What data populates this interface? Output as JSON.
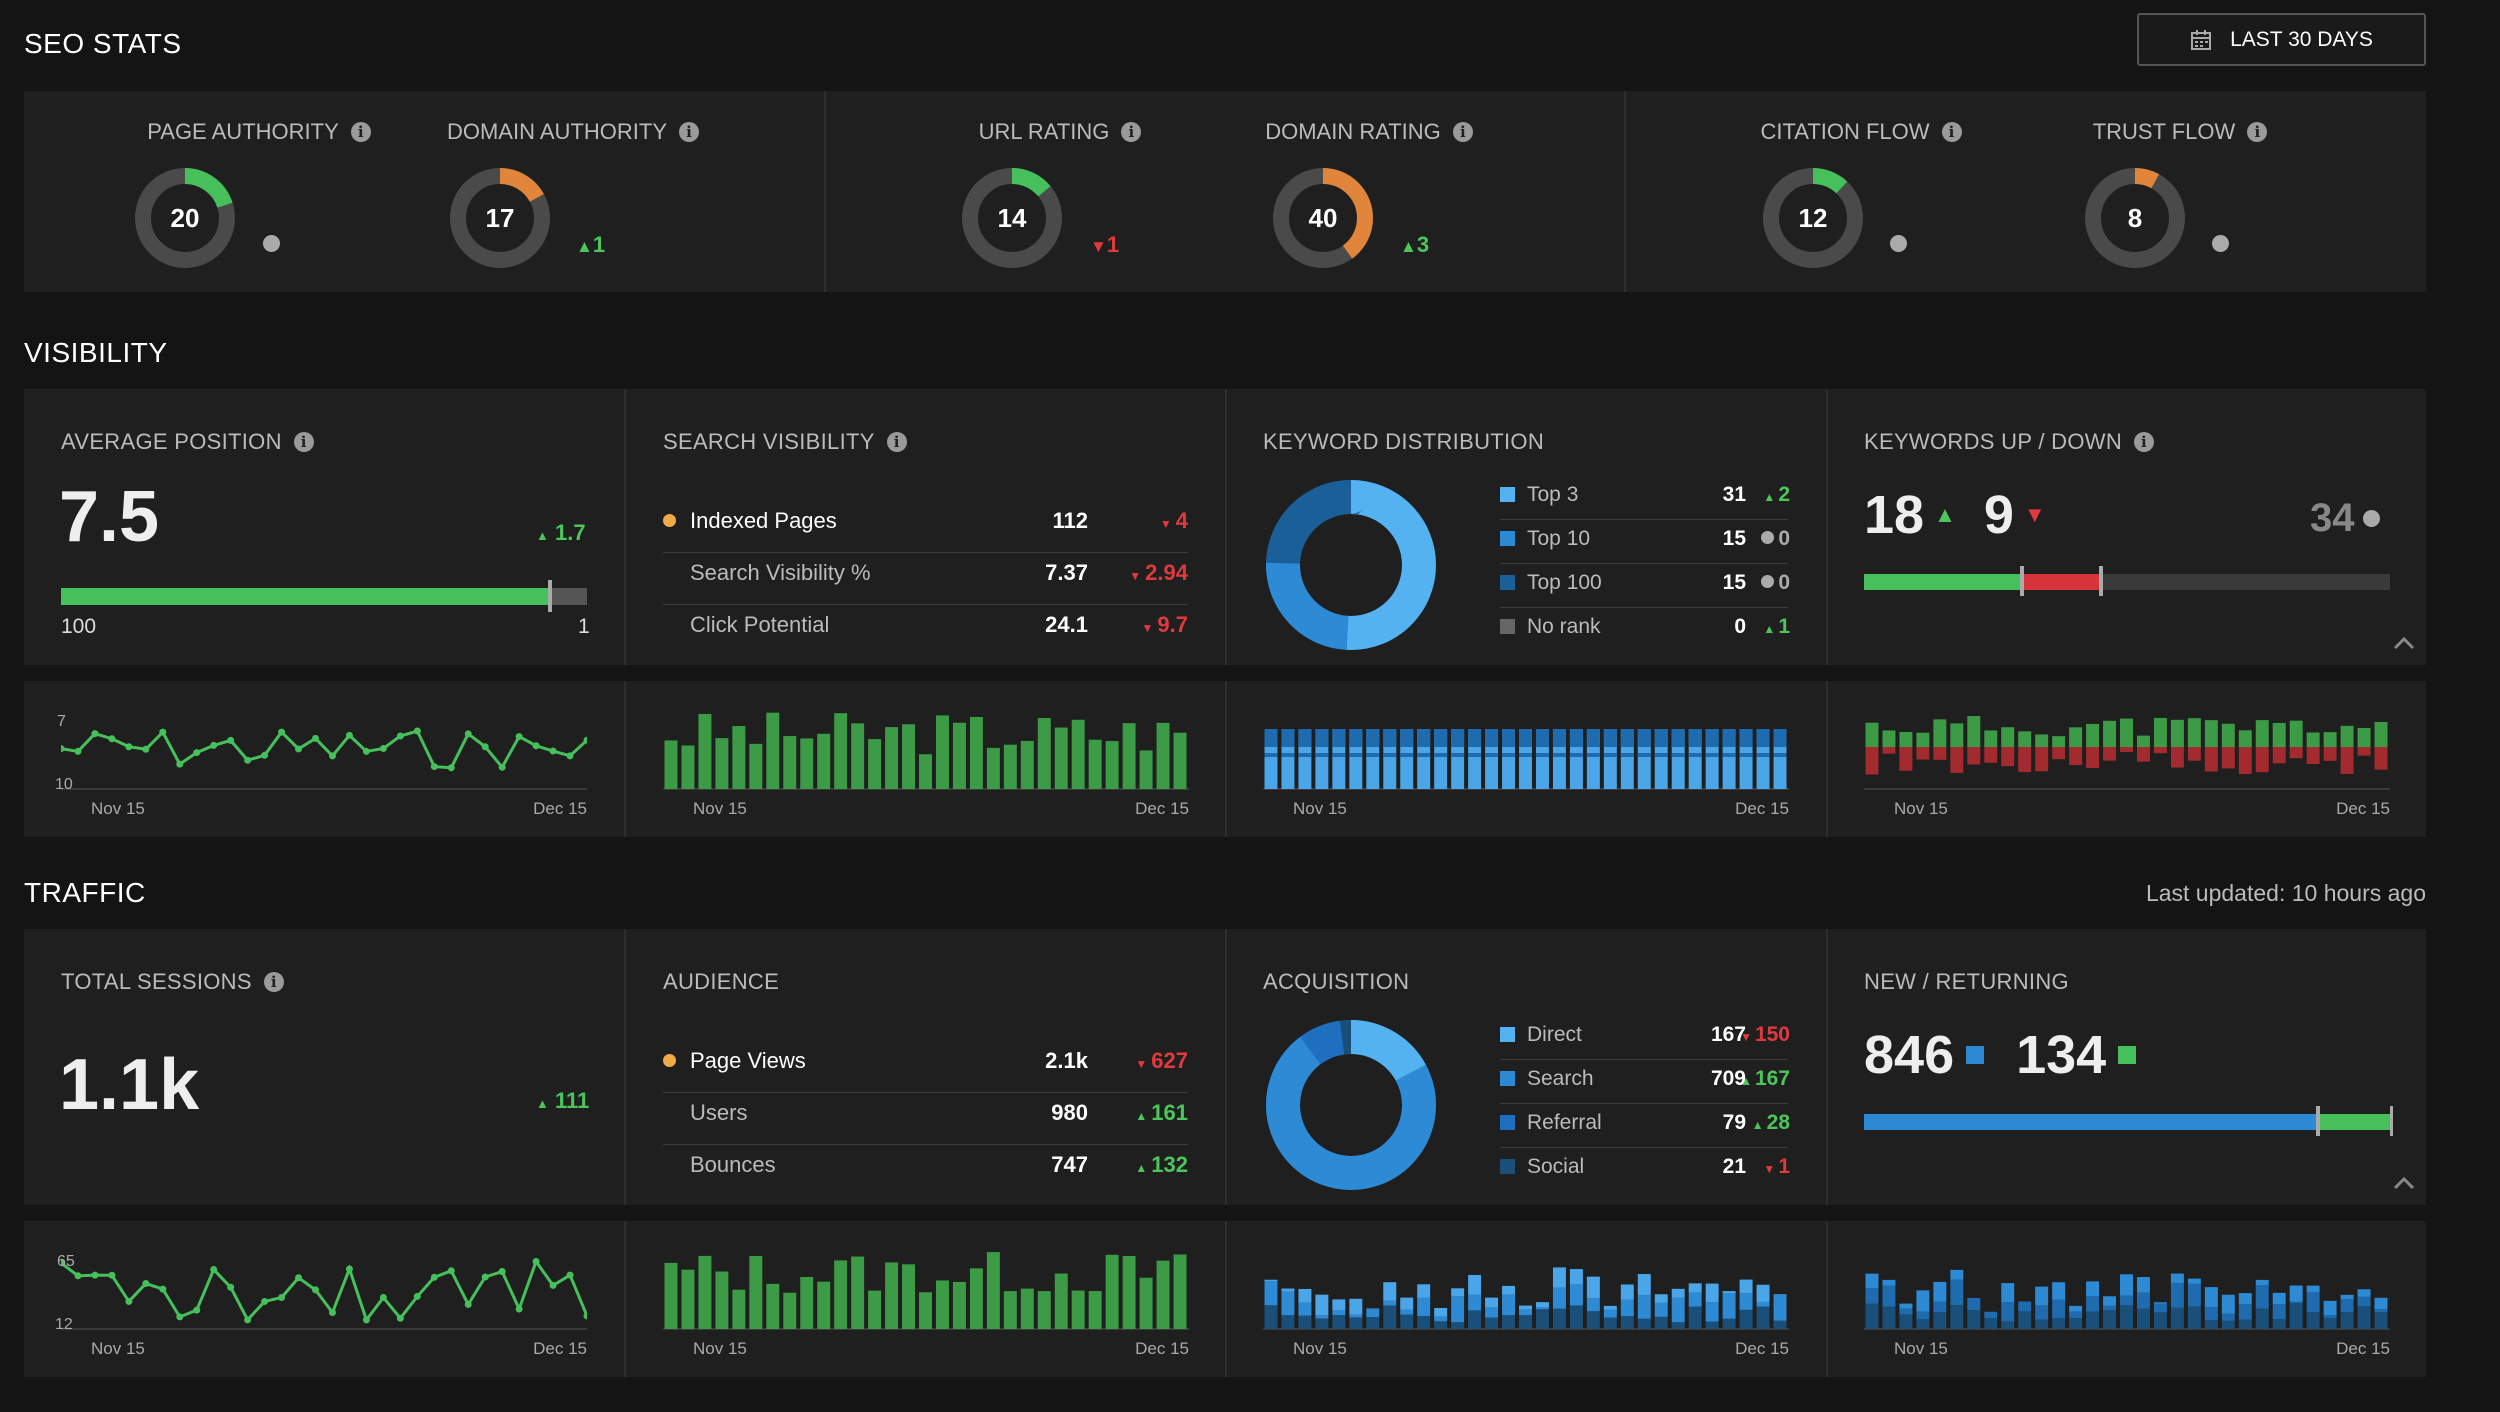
{
  "header": {
    "title": "SEO STATS",
    "range_button": "LAST 30 DAYS"
  },
  "seo": {
    "metrics": [
      {
        "label": "PAGE AUTHORITY",
        "value": "20",
        "change": "",
        "dir": "flat",
        "color": "#46c05a"
      },
      {
        "label": "DOMAIN AUTHORITY",
        "value": "17",
        "change": "1",
        "dir": "up",
        "color": "#e0853a"
      },
      {
        "label": "URL RATING",
        "value": "14",
        "change": "1",
        "dir": "down",
        "color": "#46c05a"
      },
      {
        "label": "DOMAIN RATING",
        "value": "40",
        "change": "3",
        "dir": "up",
        "color": "#e0853a"
      },
      {
        "label": "CITATION FLOW",
        "value": "12",
        "change": "",
        "dir": "flat",
        "color": "#46c05a"
      },
      {
        "label": "TRUST FLOW",
        "value": "8",
        "change": "",
        "dir": "flat",
        "color": "#e0853a"
      }
    ]
  },
  "visibility": {
    "title": "VISIBILITY",
    "avg_position": {
      "label": "AVERAGE POSITION",
      "value": "7.5",
      "change": "1.7",
      "range_min": "100",
      "range_max": "1",
      "progress": 0.93
    },
    "search_visibility": {
      "label": "SEARCH VISIBILITY",
      "rows": [
        {
          "name": "Indexed Pages",
          "value": "112",
          "change": "4",
          "dir": "down"
        },
        {
          "name": "Search Visibility %",
          "value": "7.37",
          "change": "2.94",
          "dir": "down"
        },
        {
          "name": "Click Potential",
          "value": "24.1",
          "change": "9.7",
          "dir": "down"
        }
      ]
    },
    "keyword_distribution": {
      "label": "KEYWORD DISTRIBUTION",
      "rows": [
        {
          "name": "Top 3",
          "value": "31",
          "change": "2",
          "dir": "up",
          "color": "#53b2ef"
        },
        {
          "name": "Top 10",
          "value": "15",
          "change": "0",
          "dir": "flat",
          "color": "#2d8ad4"
        },
        {
          "name": "Top 100",
          "value": "15",
          "change": "0",
          "dir": "flat",
          "color": "#1a5f98"
        },
        {
          "name": "No rank",
          "value": "0",
          "change": "1",
          "dir": "up",
          "color": "#666666"
        }
      ]
    },
    "keywords_updown": {
      "label": "KEYWORDS UP / DOWN",
      "up": "18",
      "down": "9",
      "flat": "34",
      "up_frac": 0.3,
      "down_frac": 0.15
    }
  },
  "traffic": {
    "title": "TRAFFIC",
    "updated": "Last updated: 10 hours ago",
    "total_sessions": {
      "label": "TOTAL SESSIONS",
      "value": "1.1k",
      "change": "111"
    },
    "audience": {
      "label": "AUDIENCE",
      "rows": [
        {
          "name": "Page Views",
          "value": "2.1k",
          "change": "627",
          "dir": "down"
        },
        {
          "name": "Users",
          "value": "980",
          "change": "161",
          "dir": "up"
        },
        {
          "name": "Bounces",
          "value": "747",
          "change": "132",
          "dir": "up"
        }
      ]
    },
    "acquisition": {
      "label": "ACQUISITION",
      "rows": [
        {
          "name": "Direct",
          "value": "167",
          "change": "150",
          "dir": "down",
          "color": "#53b2ef"
        },
        {
          "name": "Search",
          "value": "709",
          "change": "167",
          "dir": "up",
          "color": "#2d8ad4"
        },
        {
          "name": "Referral",
          "value": "79",
          "change": "28",
          "dir": "up",
          "color": "#1e6fbf"
        },
        {
          "name": "Social",
          "value": "21",
          "change": "1",
          "dir": "down",
          "color": "#1a4f7a"
        }
      ]
    },
    "new_returning": {
      "label": "NEW / RETURNING",
      "new": "846",
      "returning": "134",
      "new_frac": 0.86
    }
  },
  "sparks": {
    "x_start": "Nov 15",
    "x_end": "Dec 15",
    "avg_pos_y": [
      "7",
      "10"
    ],
    "sessions_y": [
      "65",
      "12"
    ]
  }
}
